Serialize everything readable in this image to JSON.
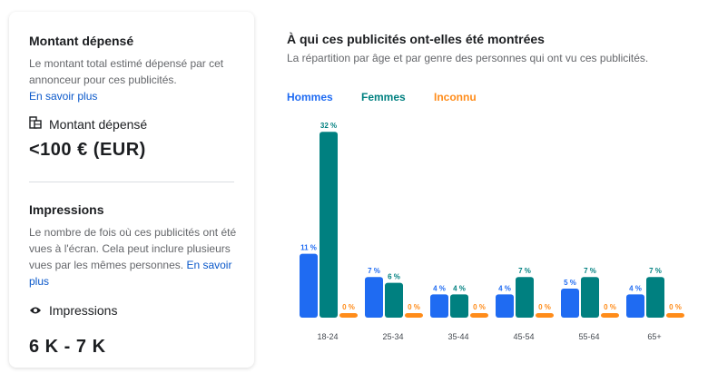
{
  "spend": {
    "heading": "Montant dépensé",
    "description": "Le montant total estimé dépensé par cet annonceur pour ces publicités.",
    "learn_more": "En savoir plus",
    "label": "Montant dépensé",
    "value": "<100 € (EUR)"
  },
  "impressions": {
    "heading": "Impressions",
    "description": "Le nombre de fois où ces publicités ont été vues à l'écran. Cela peut inclure plusieurs vues par les mêmes personnes.",
    "learn_more": "En savoir plus",
    "label": "Impressions",
    "value": "6 K - 7 K"
  },
  "audience": {
    "title": "À qui ces publicités ont-elles été montrées",
    "subtitle": "La répartition par âge et par genre des personnes qui ont vu ces publicités."
  },
  "chart_data": {
    "type": "bar",
    "categories": [
      "18-24",
      "25-34",
      "35-44",
      "45-54",
      "55-64",
      "65+"
    ],
    "series": [
      {
        "name": "Hommes",
        "color": "#1f6bf2",
        "values": [
          11,
          7,
          4,
          4,
          5,
          4
        ]
      },
      {
        "name": "Femmes",
        "color": "#008080",
        "values": [
          32,
          6,
          4,
          7,
          7,
          7
        ]
      },
      {
        "name": "Inconnu",
        "color": "#ff8c1a",
        "values": [
          0,
          0,
          0,
          0,
          0,
          0
        ]
      }
    ],
    "value_suffix": " %",
    "legend_position": "top-left",
    "grid": false
  }
}
